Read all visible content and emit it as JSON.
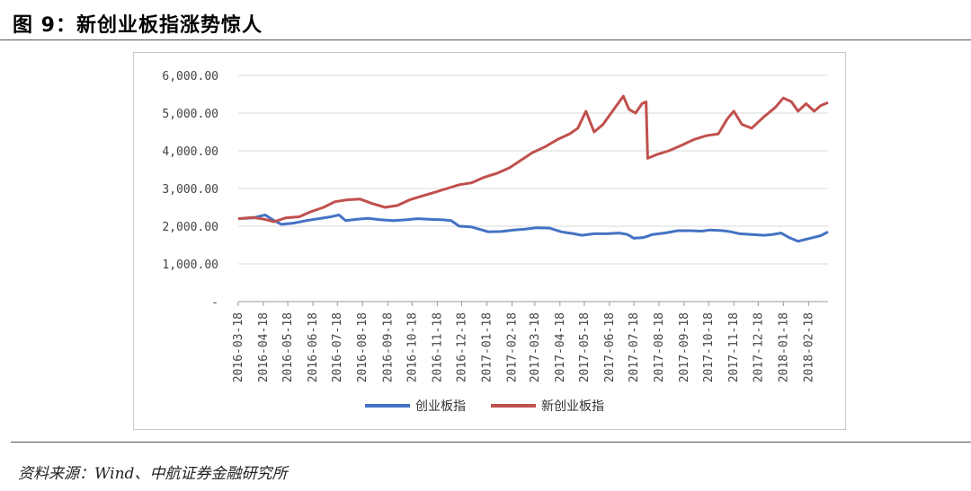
{
  "figure": {
    "title": "图 9：新创业板指涨势惊人",
    "source": "资料来源：Wind、中航证券金融研究所"
  },
  "colors": {
    "series_blue": "#4472c4",
    "series_red": "#c0504d",
    "grid": "#d9d9d9"
  },
  "chart_data": {
    "type": "line",
    "title": "",
    "xlabel": "",
    "ylabel": "",
    "ylim": [
      0,
      6000
    ],
    "y_ticks": [
      "-",
      "1,000.00",
      "2,000.00",
      "3,000.00",
      "4,000.00",
      "5,000.00",
      "6,000.00"
    ],
    "x_ticks": [
      "2016-03-18",
      "2016-04-18",
      "2016-05-18",
      "2016-06-18",
      "2016-07-18",
      "2016-08-18",
      "2016-09-18",
      "2016-10-18",
      "2016-11-18",
      "2016-12-18",
      "2017-01-18",
      "2017-02-18",
      "2017-03-18",
      "2017-04-18",
      "2017-05-18",
      "2017-06-18",
      "2017-07-18",
      "2017-08-18",
      "2017-09-18",
      "2017-10-18",
      "2017-11-18",
      "2017-12-18",
      "2018-01-18",
      "2018-02-18"
    ],
    "x_range": [
      "2016-03-18",
      "2018-03-14"
    ],
    "grid": "horizontal",
    "legend": "bottom",
    "series": [
      {
        "name": "创业板指",
        "color": "#4472c4",
        "points": [
          [
            "2016-03-18",
            2200
          ],
          [
            "2016-04-05",
            2220
          ],
          [
            "2016-04-20",
            2300
          ],
          [
            "2016-05-01",
            2150
          ],
          [
            "2016-05-10",
            2050
          ],
          [
            "2016-05-25",
            2080
          ],
          [
            "2016-06-10",
            2150
          ],
          [
            "2016-06-25",
            2200
          ],
          [
            "2016-07-10",
            2250
          ],
          [
            "2016-07-20",
            2300
          ],
          [
            "2016-07-28",
            2150
          ],
          [
            "2016-08-10",
            2180
          ],
          [
            "2016-08-25",
            2210
          ],
          [
            "2016-09-10",
            2170
          ],
          [
            "2016-09-25",
            2150
          ],
          [
            "2016-10-10",
            2170
          ],
          [
            "2016-10-25",
            2200
          ],
          [
            "2016-11-10",
            2180
          ],
          [
            "2016-11-25",
            2170
          ],
          [
            "2016-12-05",
            2150
          ],
          [
            "2016-12-15",
            2000
          ],
          [
            "2016-12-30",
            1980
          ],
          [
            "2017-01-12",
            1900
          ],
          [
            "2017-01-20",
            1850
          ],
          [
            "2017-02-05",
            1860
          ],
          [
            "2017-02-20",
            1900
          ],
          [
            "2017-03-05",
            1920
          ],
          [
            "2017-03-20",
            1960
          ],
          [
            "2017-04-05",
            1950
          ],
          [
            "2017-04-20",
            1850
          ],
          [
            "2017-05-05",
            1800
          ],
          [
            "2017-05-15",
            1760
          ],
          [
            "2017-05-30",
            1800
          ],
          [
            "2017-06-15",
            1800
          ],
          [
            "2017-06-30",
            1820
          ],
          [
            "2017-07-10",
            1780
          ],
          [
            "2017-07-18",
            1680
          ],
          [
            "2017-07-30",
            1700
          ],
          [
            "2017-08-10",
            1780
          ],
          [
            "2017-08-25",
            1820
          ],
          [
            "2017-09-10",
            1880
          ],
          [
            "2017-09-25",
            1880
          ],
          [
            "2017-10-10",
            1870
          ],
          [
            "2017-10-20",
            1900
          ],
          [
            "2017-11-05",
            1880
          ],
          [
            "2017-11-15",
            1850
          ],
          [
            "2017-11-25",
            1800
          ],
          [
            "2017-12-10",
            1780
          ],
          [
            "2017-12-25",
            1760
          ],
          [
            "2018-01-05",
            1780
          ],
          [
            "2018-01-15",
            1820
          ],
          [
            "2018-01-25",
            1700
          ],
          [
            "2018-02-05",
            1600
          ],
          [
            "2018-02-20",
            1680
          ],
          [
            "2018-03-05",
            1750
          ],
          [
            "2018-03-14",
            1850
          ]
        ]
      },
      {
        "name": "新创业板指",
        "color": "#c0504d",
        "points": [
          [
            "2016-03-18",
            2200
          ],
          [
            "2016-04-05",
            2230
          ],
          [
            "2016-04-20",
            2180
          ],
          [
            "2016-05-01",
            2120
          ],
          [
            "2016-05-15",
            2220
          ],
          [
            "2016-06-01",
            2250
          ],
          [
            "2016-06-15",
            2380
          ],
          [
            "2016-07-01",
            2500
          ],
          [
            "2016-07-15",
            2650
          ],
          [
            "2016-07-30",
            2700
          ],
          [
            "2016-08-15",
            2720
          ],
          [
            "2016-08-30",
            2600
          ],
          [
            "2016-09-15",
            2500
          ],
          [
            "2016-09-30",
            2550
          ],
          [
            "2016-10-15",
            2700
          ],
          [
            "2016-10-30",
            2800
          ],
          [
            "2016-11-15",
            2900
          ],
          [
            "2016-11-30",
            3000
          ],
          [
            "2016-12-15",
            3100
          ],
          [
            "2016-12-30",
            3150
          ],
          [
            "2017-01-15",
            3300
          ],
          [
            "2017-01-30",
            3400
          ],
          [
            "2017-02-15",
            3550
          ],
          [
            "2017-03-01",
            3750
          ],
          [
            "2017-03-15",
            3950
          ],
          [
            "2017-03-30",
            4100
          ],
          [
            "2017-04-15",
            4300
          ],
          [
            "2017-04-30",
            4450
          ],
          [
            "2017-05-10",
            4600
          ],
          [
            "2017-05-20",
            5050
          ],
          [
            "2017-05-30",
            4500
          ],
          [
            "2017-06-10",
            4700
          ],
          [
            "2017-06-20",
            5000
          ],
          [
            "2017-06-30",
            5300
          ],
          [
            "2017-07-05",
            5450
          ],
          [
            "2017-07-12",
            5100
          ],
          [
            "2017-07-20",
            5000
          ],
          [
            "2017-07-28",
            5250
          ],
          [
            "2017-08-02",
            5300
          ],
          [
            "2017-08-04",
            3800
          ],
          [
            "2017-08-15",
            3900
          ],
          [
            "2017-08-30",
            4000
          ],
          [
            "2017-09-15",
            4150
          ],
          [
            "2017-09-30",
            4300
          ],
          [
            "2017-10-15",
            4400
          ],
          [
            "2017-10-30",
            4450
          ],
          [
            "2017-11-10",
            4850
          ],
          [
            "2017-11-18",
            5050
          ],
          [
            "2017-11-28",
            4700
          ],
          [
            "2017-12-10",
            4600
          ],
          [
            "2017-12-25",
            4900
          ],
          [
            "2018-01-08",
            5150
          ],
          [
            "2018-01-18",
            5400
          ],
          [
            "2018-01-28",
            5300
          ],
          [
            "2018-02-05",
            5050
          ],
          [
            "2018-02-15",
            5250
          ],
          [
            "2018-02-25",
            5050
          ],
          [
            "2018-03-05",
            5200
          ],
          [
            "2018-03-14",
            5280
          ]
        ]
      }
    ]
  }
}
